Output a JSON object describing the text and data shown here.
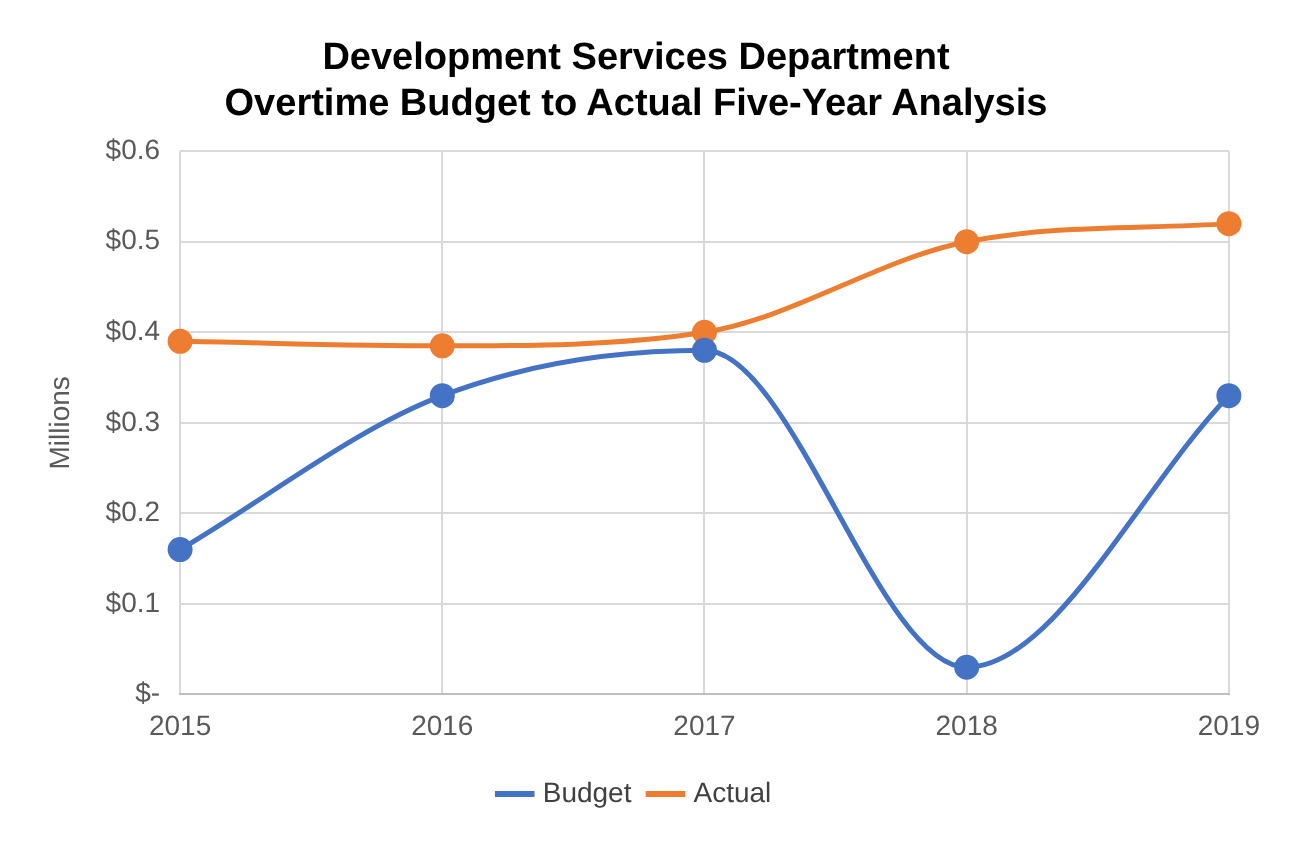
{
  "chart_data": {
    "type": "line",
    "title": "Development Services Department\nOvertime Budget to Actual Five-Year Analysis",
    "ylabel": "Millions",
    "categories": [
      "2015",
      "2016",
      "2017",
      "2018",
      "2019"
    ],
    "series": [
      {
        "name": "Budget",
        "color": "#4472c4",
        "values": [
          0.16,
          0.33,
          0.38,
          0.03,
          0.33
        ]
      },
      {
        "name": "Actual",
        "color": "#ed7d31",
        "values": [
          0.39,
          0.385,
          0.4,
          0.5,
          0.52
        ]
      }
    ],
    "ylim": [
      0,
      0.6
    ],
    "yticks": [
      {
        "value": 0,
        "label": "$-"
      },
      {
        "value": 0.1,
        "label": "$0.1"
      },
      {
        "value": 0.2,
        "label": "$0.2"
      },
      {
        "value": 0.3,
        "label": "$0.3"
      },
      {
        "value": 0.4,
        "label": "$0.4"
      },
      {
        "value": 0.5,
        "label": "$0.5"
      },
      {
        "value": 0.6,
        "label": "$0.6"
      }
    ],
    "grid": true,
    "legend": "bottom",
    "marker": "circle",
    "line_style": "solid"
  }
}
